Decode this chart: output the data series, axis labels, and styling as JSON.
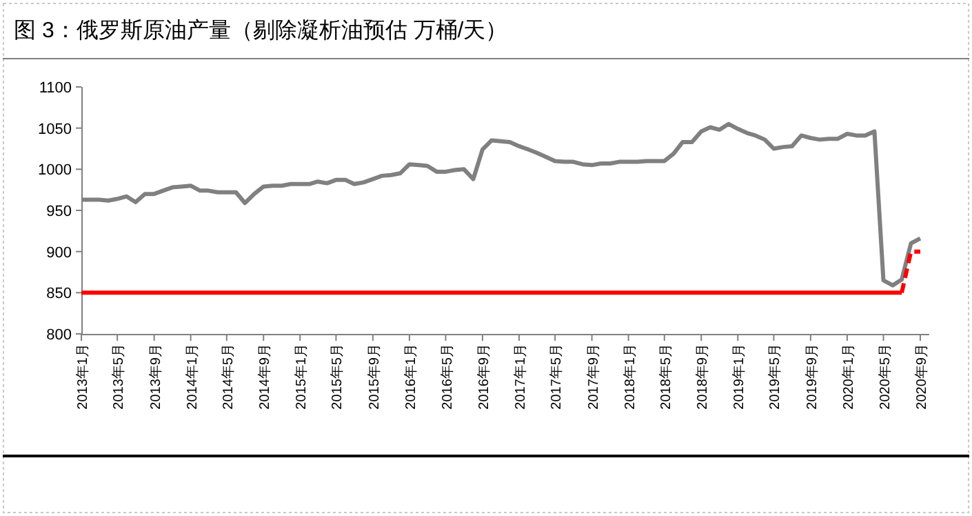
{
  "chart_data": {
    "type": "line",
    "title": "图 3：俄罗斯原油产量（剔除凝析油预估 万桶/天）",
    "x": [
      "2013-01",
      "2013-02",
      "2013-03",
      "2013-04",
      "2013-05",
      "2013-06",
      "2013-07",
      "2013-08",
      "2013-09",
      "2013-10",
      "2013-11",
      "2013-12",
      "2014-01",
      "2014-02",
      "2014-03",
      "2014-04",
      "2014-05",
      "2014-06",
      "2014-07",
      "2014-08",
      "2014-09",
      "2014-10",
      "2014-11",
      "2014-12",
      "2015-01",
      "2015-02",
      "2015-03",
      "2015-04",
      "2015-05",
      "2015-06",
      "2015-07",
      "2015-08",
      "2015-09",
      "2015-10",
      "2015-11",
      "2015-12",
      "2016-01",
      "2016-02",
      "2016-03",
      "2016-04",
      "2016-05",
      "2016-06",
      "2016-07",
      "2016-08",
      "2016-09",
      "2016-10",
      "2016-11",
      "2016-12",
      "2017-01",
      "2017-02",
      "2017-03",
      "2017-04",
      "2017-05",
      "2017-06",
      "2017-07",
      "2017-08",
      "2017-09",
      "2017-10",
      "2017-11",
      "2017-12",
      "2018-01",
      "2018-02",
      "2018-03",
      "2018-04",
      "2018-05",
      "2018-06",
      "2018-07",
      "2018-08",
      "2018-09",
      "2018-10",
      "2018-11",
      "2018-12",
      "2019-01",
      "2019-02",
      "2019-03",
      "2019-04",
      "2019-05",
      "2019-06",
      "2019-07",
      "2019-08",
      "2019-09",
      "2019-10",
      "2019-11",
      "2019-12",
      "2020-01",
      "2020-02",
      "2020-03",
      "2020-04",
      "2020-05",
      "2020-06",
      "2020-07",
      "2020-08",
      "2020-09"
    ],
    "series": [
      {
        "color": "#808080",
        "values": [
          963,
          963,
          963,
          962,
          964,
          967,
          960,
          970,
          970,
          974,
          978,
          979,
          980,
          974,
          974,
          972,
          972,
          972,
          959,
          970,
          979,
          980,
          980,
          982,
          982,
          982,
          985,
          983,
          987,
          987,
          982,
          984,
          988,
          992,
          993,
          995,
          1006,
          1005,
          1004,
          997,
          997,
          999,
          1000,
          988,
          1024,
          1035,
          1034,
          1033,
          1028,
          1024,
          1020,
          1015,
          1010,
          1009,
          1009,
          1006,
          1005,
          1007,
          1007,
          1009,
          1009,
          1009,
          1010,
          1010,
          1010,
          1019,
          1033,
          1033,
          1046,
          1051,
          1048,
          1055,
          1049,
          1044,
          1041,
          1036,
          1025,
          1027,
          1028,
          1041,
          1038,
          1036,
          1037,
          1037,
          1043,
          1041,
          1041,
          1046,
          865,
          859,
          866,
          910,
          916
        ]
      },
      {
        "color": "#ff0000",
        "x": [
          "2013-01",
          "2020-07"
        ],
        "values": [
          850,
          850
        ]
      },
      {
        "color": "#ff0000",
        "line_style": "dashed",
        "x": [
          "2020-07",
          "2020-08",
          "2020-09"
        ],
        "values": [
          850,
          900,
          900
        ]
      }
    ],
    "xlim": [
      "2013-01",
      "2020-10"
    ],
    "xticks": [
      {
        "value": "2013-01",
        "label": "2013年1月"
      },
      {
        "value": "2013-05",
        "label": "2013年5月"
      },
      {
        "value": "2013-09",
        "label": "2013年9月"
      },
      {
        "value": "2014-01",
        "label": "2014年1月"
      },
      {
        "value": "2014-05",
        "label": "2014年5月"
      },
      {
        "value": "2014-09",
        "label": "2014年9月"
      },
      {
        "value": "2015-01",
        "label": "2015年1月"
      },
      {
        "value": "2015-05",
        "label": "2015年5月"
      },
      {
        "value": "2015-09",
        "label": "2015年9月"
      },
      {
        "value": "2016-01",
        "label": "2016年1月"
      },
      {
        "value": "2016-05",
        "label": "2016年5月"
      },
      {
        "value": "2016-09",
        "label": "2016年9月"
      },
      {
        "value": "2017-01",
        "label": "2017年1月"
      },
      {
        "value": "2017-05",
        "label": "2017年5月"
      },
      {
        "value": "2017-09",
        "label": "2017年9月"
      },
      {
        "value": "2018-01",
        "label": "2018年1月"
      },
      {
        "value": "2018-05",
        "label": "2018年5月"
      },
      {
        "value": "2018-09",
        "label": "2018年9月"
      },
      {
        "value": "2019-01",
        "label": "2019年1月"
      },
      {
        "value": "2019-05",
        "label": "2019年5月"
      },
      {
        "value": "2019-09",
        "label": "2019年9月"
      },
      {
        "value": "2020-01",
        "label": "2020年1月"
      },
      {
        "value": "2020-05",
        "label": "2020年5月"
      },
      {
        "value": "2020-09",
        "label": "2020年9月"
      }
    ],
    "ylim": [
      800,
      1100
    ],
    "yticks": [
      800,
      850,
      900,
      950,
      1000,
      1050,
      1100
    ],
    "grid": false,
    "line_style": "solid"
  }
}
